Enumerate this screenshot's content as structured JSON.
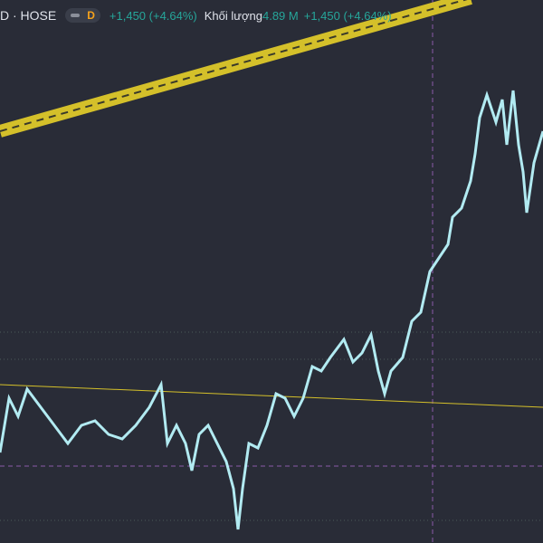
{
  "header": {
    "symbol": "D · HOSE",
    "interval": "D",
    "change": "+1,450 (+4.64%)",
    "volume_label": "Khối lượng",
    "volume": "4.89 M",
    "volume_change": "+1,450 (+4.64%)"
  }
}
